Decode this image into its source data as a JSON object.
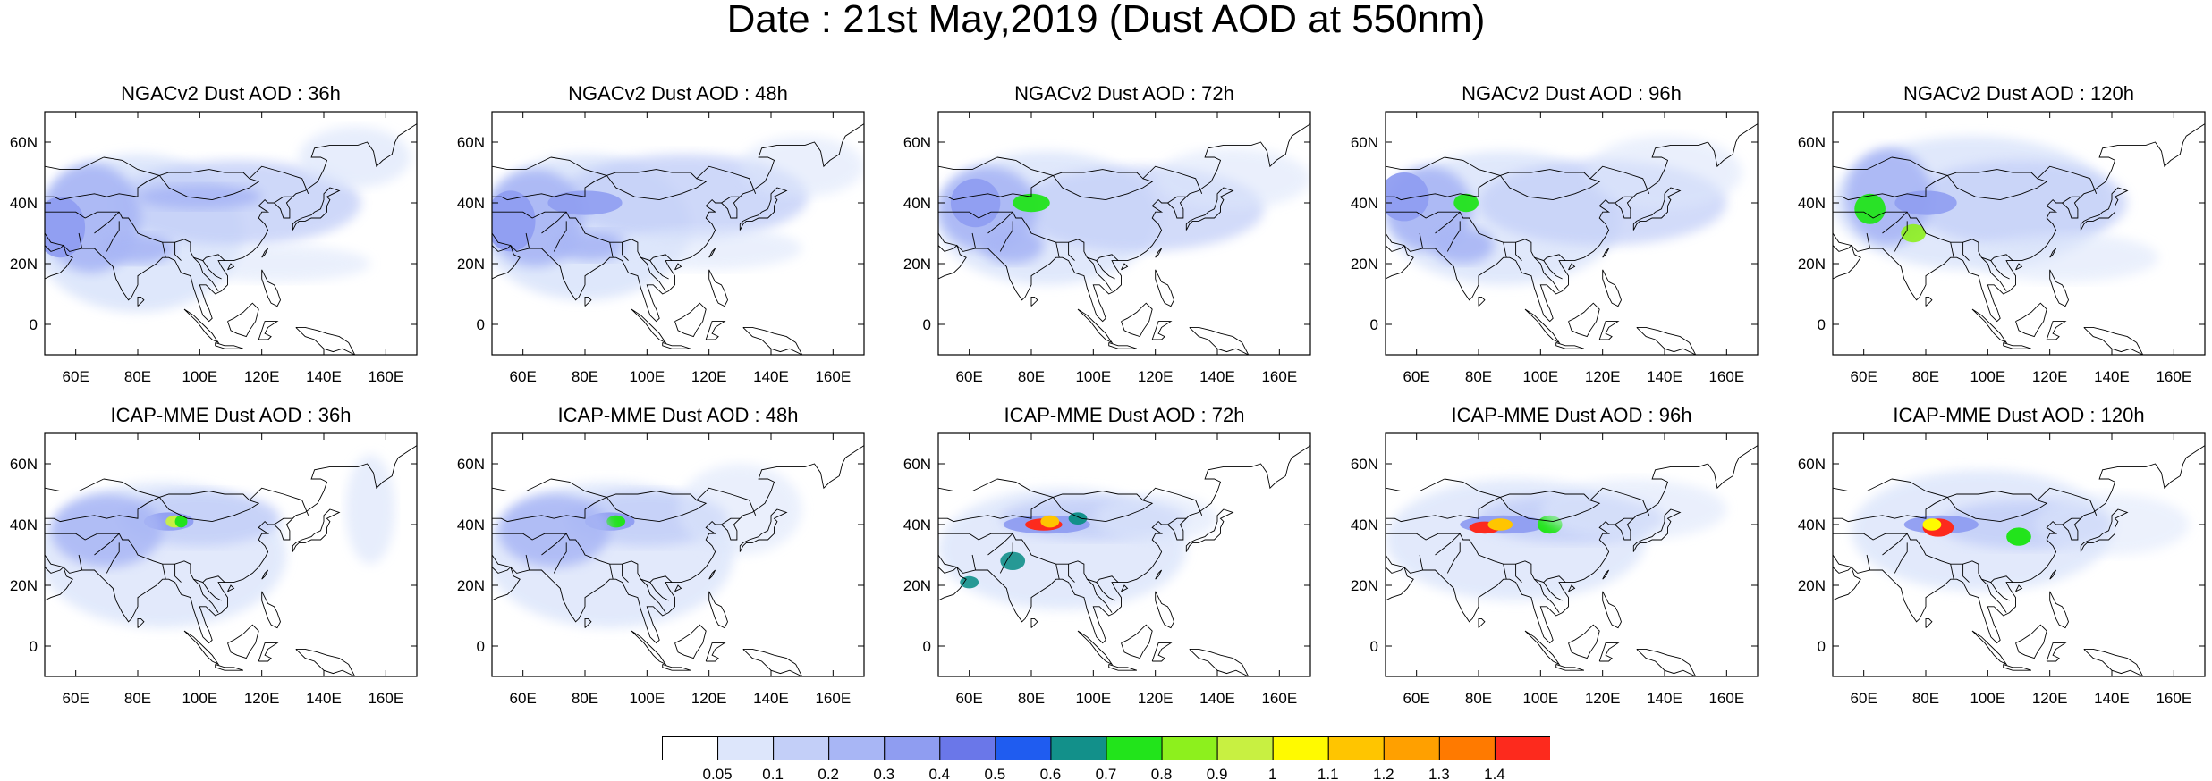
{
  "title": "Date : 21st May,2019 (Dust AOD at 550nm)",
  "x_ticks": [
    "60E",
    "80E",
    "100E",
    "120E",
    "140E",
    "160E"
  ],
  "y_ticks": [
    "0",
    "20N",
    "40N",
    "60N"
  ],
  "panels": [
    {
      "title": "NGACv2 Dust AOD : 36h",
      "model": "NGACv2",
      "lead": "36h"
    },
    {
      "title": "NGACv2 Dust AOD : 48h",
      "model": "NGACv2",
      "lead": "48h"
    },
    {
      "title": "NGACv2 Dust AOD : 72h",
      "model": "NGACv2",
      "lead": "72h"
    },
    {
      "title": "NGACv2 Dust AOD : 96h",
      "model": "NGACv2",
      "lead": "96h"
    },
    {
      "title": "NGACv2 Dust AOD : 120h",
      "model": "NGACv2",
      "lead": "120h"
    },
    {
      "title": "ICAP-MME Dust AOD : 36h",
      "model": "ICAP-MME",
      "lead": "36h"
    },
    {
      "title": "ICAP-MME Dust AOD : 48h",
      "model": "ICAP-MME",
      "lead": "48h"
    },
    {
      "title": "ICAP-MME Dust AOD : 72h",
      "model": "ICAP-MME",
      "lead": "72h"
    },
    {
      "title": "ICAP-MME Dust AOD : 96h",
      "model": "ICAP-MME",
      "lead": "96h"
    },
    {
      "title": "ICAP-MME Dust AOD : 120h",
      "model": "ICAP-MME",
      "lead": "120h"
    }
  ],
  "colorbar": {
    "labels": [
      "0.05",
      "0.1",
      "0.2",
      "0.3",
      "0.4",
      "0.5",
      "0.6",
      "0.7",
      "0.8",
      "0.9",
      "1",
      "1.1",
      "1.2",
      "1.3",
      "1.4"
    ],
    "colors": [
      "#ffffff",
      "#dde6fb",
      "#c3cff8",
      "#a8b6f5",
      "#8f9df1",
      "#6a77e9",
      "#1f5cf0",
      "#12908a",
      "#22e41b",
      "#8df01d",
      "#c8f041",
      "#fffa00",
      "#ffc500",
      "#ffa000",
      "#ff7a00",
      "#fd2a1d"
    ]
  },
  "map_extent": {
    "lon": [
      50,
      170
    ],
    "lat": [
      -10,
      70
    ]
  }
}
